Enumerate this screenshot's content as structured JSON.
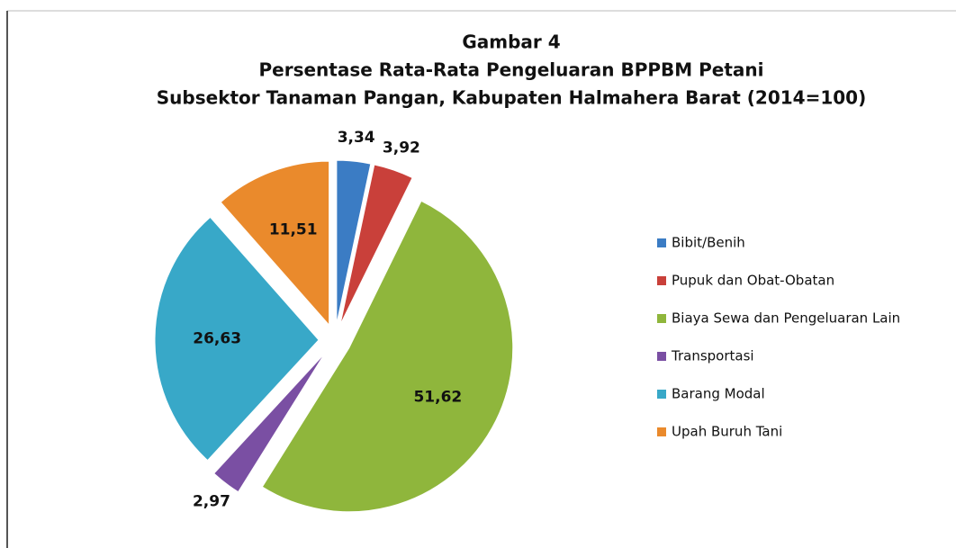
{
  "chart_data": {
    "type": "pie",
    "title": [
      "Gambar 4",
      "Persentase Rata-Rata Pengeluaran BPPBM Petani",
      "Subsektor Tanaman Pangan, Kabupaten Halmahera Barat (2014=100)"
    ],
    "categories": [
      "Bibit/Benih",
      "Pupuk dan Obat-Obatan",
      "Biaya Sewa dan Pengeluaran Lain",
      "Transportasi",
      "Barang Modal",
      "Upah Buruh Tani"
    ],
    "values": [
      3.34,
      3.92,
      51.62,
      2.97,
      26.63,
      11.51
    ],
    "value_labels": [
      "3,34",
      "3,92",
      "51,62",
      "2,97",
      "26,63",
      "11,51"
    ],
    "colors": [
      "#3b7cc4",
      "#c9403a",
      "#8fb63c",
      "#7a4fa3",
      "#38a8c8",
      "#ea8a2c"
    ],
    "legend": "right"
  }
}
